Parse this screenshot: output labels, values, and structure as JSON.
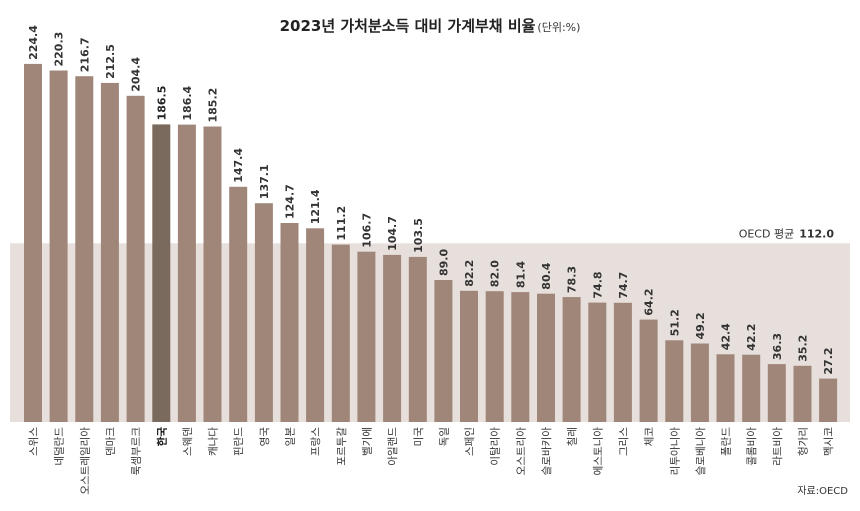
{
  "chart_data": {
    "type": "bar",
    "title": "2023년 가처분소득 대비 가계부채 비율",
    "title_unit": "(단위:%)",
    "categories": [
      "스위스",
      "네덜란드",
      "오스트레일리아",
      "덴마크",
      "룩셈부르크",
      "한국",
      "스웨덴",
      "캐나다",
      "핀란드",
      "영국",
      "일본",
      "프랑스",
      "포르투갈",
      "벨기에",
      "아일랜드",
      "미국",
      "독일",
      "스페인",
      "이탈리아",
      "오스트리아",
      "슬로바키아",
      "칠레",
      "에스토니아",
      "그리스",
      "체코",
      "리투아니아",
      "슬로베니아",
      "폴란드",
      "콜롬비아",
      "라트비아",
      "헝가리",
      "멕시코"
    ],
    "values": [
      224.4,
      220.3,
      216.7,
      212.5,
      204.4,
      186.5,
      186.4,
      185.2,
      147.4,
      137.1,
      124.7,
      121.4,
      111.2,
      106.7,
      104.7,
      103.5,
      89.0,
      82.2,
      82.0,
      81.4,
      80.4,
      78.3,
      74.8,
      74.7,
      64.2,
      51.2,
      49.2,
      42.4,
      42.2,
      36.3,
      35.2,
      27.2
    ],
    "value_labels": [
      "224.4",
      "220.3",
      "216.7",
      "212.5",
      "204.4",
      "186.5",
      "186.4",
      "185.2",
      "147.4",
      "137.1",
      "124.7",
      "121.4",
      "111.2",
      "106.7",
      "104.7",
      "103.5",
      "89.0",
      "82.2",
      "82.0",
      "81.4",
      "80.4",
      "78.3",
      "74.8",
      "74.7",
      "64.2",
      "51.2",
      "49.2",
      "42.4",
      "42.2",
      "36.3",
      "35.2",
      "27.2"
    ],
    "highlight": "한국",
    "ylim": [
      0,
      230
    ],
    "grid": false,
    "average": {
      "label": "OECD 평균",
      "value": 112.0,
      "value_text": "112.0"
    },
    "colors": {
      "bar": "#a08679",
      "highlight": "#7a6a5d",
      "average_band": "#e6dfdb"
    }
  },
  "source": "자료:OECD"
}
